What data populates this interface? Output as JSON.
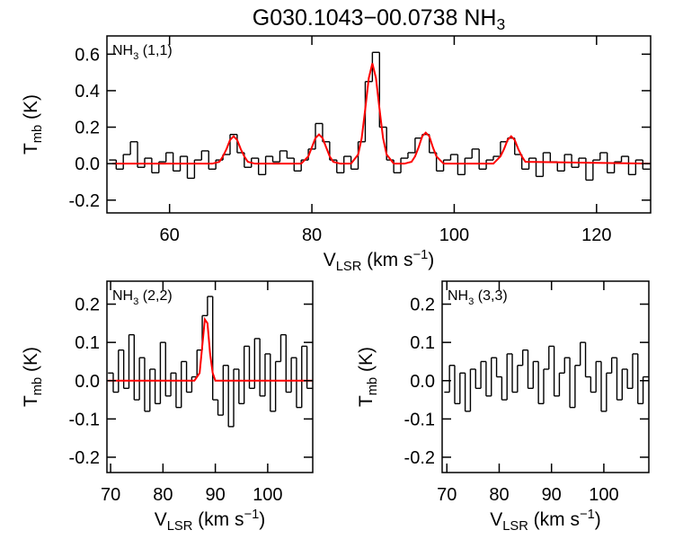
{
  "chart_data": [
    {
      "type": "line",
      "title": [
        {
          "text": "G030.1043−00.0738 NH"
        },
        {
          "text": "3",
          "shift": "sub"
        }
      ],
      "annotation": [
        {
          "text": "NH"
        },
        {
          "text": "3",
          "shift": "sub"
        },
        {
          "text": " (1,1)"
        }
      ],
      "xlabel": [
        {
          "text": "V"
        },
        {
          "text": "LSR",
          "shift": "sub"
        },
        {
          "text": " (km s"
        },
        {
          "text": "−1",
          "shift": "sup"
        },
        {
          "text": ")"
        }
      ],
      "ylabel": [
        {
          "text": "T"
        },
        {
          "text": "mb",
          "shift": "sub"
        },
        {
          "text": " (K)"
        }
      ],
      "xlim": [
        51.2,
        127.6
      ],
      "ylim": [
        -0.27,
        0.7
      ],
      "xticks": [
        60,
        80,
        100,
        120
      ],
      "yticks": [
        -0.2,
        {
          "value": 0,
          "label": "0.0"
        },
        0.2,
        0.4,
        0.6
      ],
      "x": [
        52,
        53,
        54,
        55,
        56,
        57,
        58,
        59,
        60,
        61,
        62,
        63,
        64,
        65,
        66,
        67,
        68,
        69,
        70,
        71,
        72,
        73,
        74,
        75,
        76,
        77,
        78,
        79,
        80,
        81,
        82,
        83,
        84,
        85,
        86,
        87,
        88,
        89,
        90,
        91,
        92,
        93,
        94,
        95,
        96,
        97,
        98,
        99,
        100,
        101,
        102,
        103,
        104,
        105,
        106,
        107,
        108,
        109,
        110,
        111,
        112,
        113,
        114,
        115,
        116,
        117,
        118,
        119,
        120,
        121,
        122,
        123,
        124,
        125,
        126,
        127
      ],
      "series": [
        {
          "color": "#000000",
          "drawstyle": "steps",
          "values": [
            0.02,
            -0.03,
            0.05,
            0.12,
            -0.02,
            0.03,
            -0.05,
            0.01,
            0.06,
            -0.04,
            0.04,
            -0.08,
            0.02,
            0.07,
            -0.03,
            0.02,
            0.05,
            0.16,
            0.06,
            -0.02,
            0.03,
            -0.06,
            0.04,
            0.01,
            0.07,
            0.03,
            -0.04,
            0.02,
            0.08,
            0.22,
            0.12,
            0.02,
            -0.05,
            0.04,
            -0.03,
            0.12,
            0.45,
            0.61,
            0.2,
            0.02,
            -0.05,
            0.03,
            0.06,
            0.14,
            0.16,
            0.06,
            -0.04,
            0.02,
            0.05,
            -0.06,
            0.03,
            0.08,
            -0.03,
            0.02,
            0.04,
            0.12,
            0.14,
            0.05,
            -0.03,
            0.03,
            -0.07,
            0.06,
            0.01,
            -0.04,
            0.05,
            -0.02,
            0.03,
            -0.09,
            0.02,
            0.06,
            -0.05,
            0.01,
            0.04,
            -0.06,
            0.02,
            -0.03
          ]
        },
        {
          "color": "#ff0000",
          "drawstyle": "smooth",
          "x": [
            52,
            66,
            67,
            67.5,
            68,
            68.5,
            69,
            69.5,
            70,
            70.5,
            71,
            72,
            78.5,
            79.5,
            80,
            80.5,
            81,
            81.5,
            82,
            82.5,
            83,
            84,
            85.5,
            86.5,
            87,
            87.5,
            88,
            88.5,
            89,
            89.5,
            90,
            90.5,
            91.5,
            93,
            94,
            94.5,
            95,
            95.5,
            96,
            96.5,
            97,
            97.5,
            98.5,
            105.5,
            106.5,
            107,
            107.5,
            108,
            108.5,
            109,
            109.5,
            110,
            127.5
          ],
          "values": [
            0,
            0,
            0.01,
            0.04,
            0.08,
            0.13,
            0.15,
            0.13,
            0.08,
            0.04,
            0.01,
            0,
            0,
            0.04,
            0.09,
            0.14,
            0.16,
            0.14,
            0.09,
            0.04,
            0.01,
            0,
            0,
            0.05,
            0.14,
            0.3,
            0.47,
            0.55,
            0.47,
            0.3,
            0.14,
            0.05,
            0,
            0,
            0.01,
            0.04,
            0.09,
            0.15,
            0.17,
            0.15,
            0.09,
            0.04,
            0,
            0,
            0.04,
            0.08,
            0.13,
            0.15,
            0.13,
            0.08,
            0.04,
            0.01,
            0
          ]
        }
      ]
    },
    {
      "type": "line",
      "annotation": [
        {
          "text": "NH"
        },
        {
          "text": "3",
          "shift": "sub"
        },
        {
          "text": " (2,2)"
        }
      ],
      "xlabel": [
        {
          "text": "V"
        },
        {
          "text": "LSR",
          "shift": "sub"
        },
        {
          "text": " (km s"
        },
        {
          "text": "−1",
          "shift": "sup"
        },
        {
          "text": ")"
        }
      ],
      "ylabel": [
        {
          "text": "T"
        },
        {
          "text": "mb",
          "shift": "sub"
        },
        {
          "text": " (K)"
        }
      ],
      "xlim": [
        69.3,
        108.6
      ],
      "ylim": [
        -0.24,
        0.26
      ],
      "xticks": [
        70,
        80,
        90,
        100
      ],
      "yticks": [
        -0.2,
        -0.1,
        {
          "value": 0,
          "label": "0.0"
        },
        0.1,
        0.2
      ],
      "x": [
        70,
        71,
        72,
        73,
        74,
        75,
        76,
        77,
        78,
        79,
        80,
        81,
        82,
        83,
        84,
        85,
        86,
        87,
        88,
        89,
        90,
        91,
        92,
        93,
        94,
        95,
        96,
        97,
        98,
        99,
        100,
        101,
        102,
        103,
        104,
        105,
        106,
        107,
        108
      ],
      "series": [
        {
          "color": "#000000",
          "drawstyle": "steps",
          "values": [
            0.02,
            -0.03,
            0.08,
            -0.02,
            0.12,
            -0.05,
            0.06,
            -0.08,
            0.03,
            -0.06,
            0.1,
            -0.04,
            0.02,
            -0.07,
            0.05,
            -0.03,
            0.01,
            0.08,
            0.17,
            0.22,
            -0.05,
            -0.09,
            0.04,
            -0.12,
            0.03,
            -0.06,
            0.09,
            -0.02,
            0.11,
            -0.04,
            0.07,
            -0.08,
            0.05,
            0.12,
            -0.03,
            0.06,
            -0.07,
            0.09,
            -0.02
          ]
        },
        {
          "color": "#ff0000",
          "drawstyle": "smooth",
          "x": [
            69.5,
            86,
            86.5,
            87,
            87.5,
            88,
            88.5,
            89,
            89.5,
            90,
            108.5
          ],
          "values": [
            0,
            0,
            0.01,
            0.02,
            0.09,
            0.16,
            0.15,
            0.07,
            0.02,
            0,
            0
          ]
        }
      ]
    },
    {
      "type": "line",
      "annotation": [
        {
          "text": "NH"
        },
        {
          "text": "3",
          "shift": "sub"
        },
        {
          "text": " (3,3)"
        }
      ],
      "xlabel": [
        {
          "text": "V"
        },
        {
          "text": "LSR",
          "shift": "sub"
        },
        {
          "text": " (km s"
        },
        {
          "text": "−1",
          "shift": "sup"
        },
        {
          "text": ")"
        }
      ],
      "ylabel": [
        {
          "text": "T"
        },
        {
          "text": "mb",
          "shift": "sub"
        },
        {
          "text": " (K)"
        }
      ],
      "xlim": [
        69.1,
        108.6
      ],
      "ylim": [
        -0.24,
        0.26
      ],
      "xticks": [
        70,
        80,
        90,
        100
      ],
      "yticks": [
        -0.2,
        -0.1,
        {
          "value": 0,
          "label": "0.0"
        },
        0.1,
        0.2
      ],
      "x": [
        70,
        71,
        72,
        73,
        74,
        75,
        76,
        77,
        78,
        79,
        80,
        81,
        82,
        83,
        84,
        85,
        86,
        87,
        88,
        89,
        90,
        91,
        92,
        93,
        94,
        95,
        96,
        97,
        98,
        99,
        100,
        101,
        102,
        103,
        104,
        105,
        106,
        107,
        108
      ],
      "series": [
        {
          "color": "#000000",
          "drawstyle": "steps",
          "values": [
            -0.03,
            0.04,
            -0.06,
            0.02,
            -0.08,
            0.03,
            -0.02,
            0.05,
            -0.04,
            0.06,
            0.01,
            -0.05,
            0.07,
            -0.03,
            0.04,
            0.08,
            -0.02,
            0.05,
            -0.06,
            0.03,
            0.09,
            -0.04,
            0.02,
            0.06,
            -0.07,
            0.04,
            0.1,
            0.01,
            -0.03,
            0.05,
            -0.08,
            0.02,
            0.06,
            -0.05,
            0.03,
            -0.02,
            0.07,
            -0.06,
            0.01
          ]
        }
      ]
    }
  ]
}
